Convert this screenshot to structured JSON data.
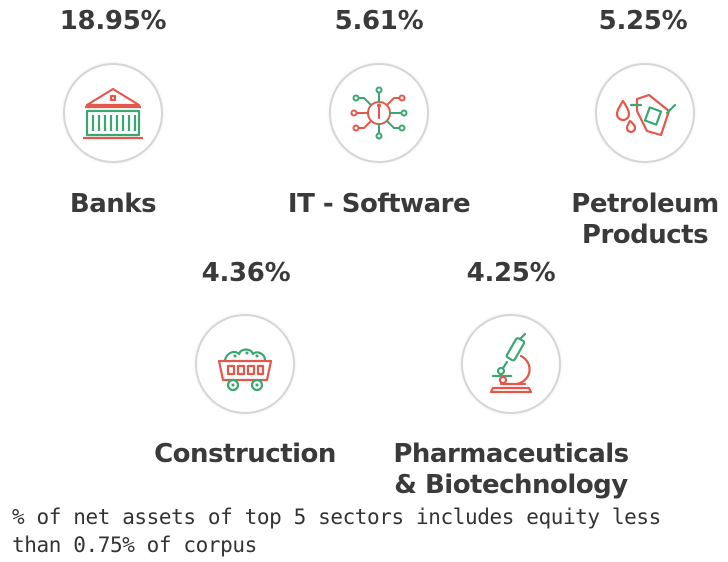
{
  "sectors": [
    {
      "percent": "18.95%",
      "label": [
        "Banks"
      ],
      "icon": "bank-building-icon"
    },
    {
      "percent": "5.61%",
      "label": [
        "IT - Software"
      ],
      "icon": "circuit-chip-icon"
    },
    {
      "percent": "5.25%",
      "label": [
        "Petroleum",
        "Products"
      ],
      "icon": "fuel-nozzle-icon"
    },
    {
      "percent": "4.36%",
      "label": [
        "Construction"
      ],
      "icon": "mine-cart-icon"
    },
    {
      "percent": "4.25%",
      "label": [
        "Pharmaceuticals",
        "& Biotechnology"
      ],
      "icon": "microscope-icon"
    }
  ],
  "footnote": "% of net assets of top 5 sectors includes equity less than 0.75% of corpus",
  "colors": {
    "green": "#3aa772",
    "red": "#e4574b",
    "text": "#3a3a3a",
    "ring": "#d6d6d6"
  }
}
